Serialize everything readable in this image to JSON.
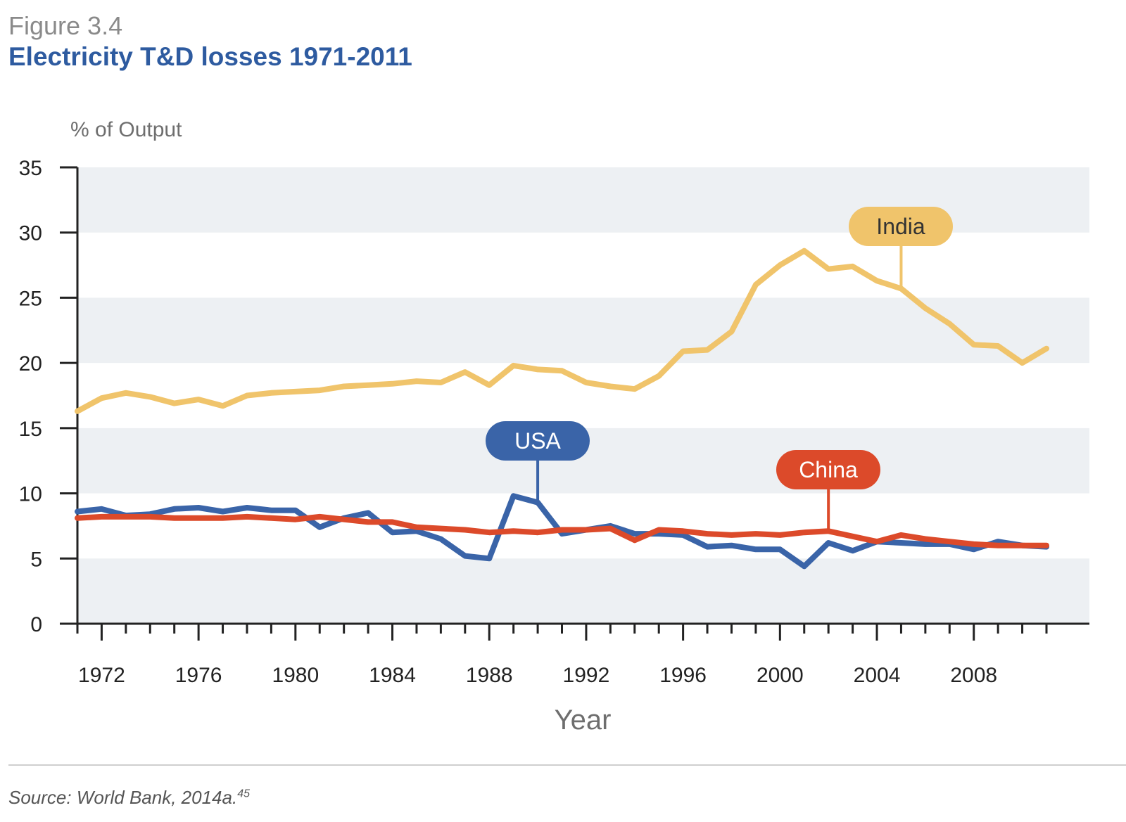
{
  "figure_label": "Figure 3.4",
  "title": "Electricity T&D losses 1971-2011",
  "source": "Source: World Bank, 2014a.",
  "source_footnote": "45",
  "colors": {
    "title": "#2e5ba0",
    "India": "#f0c46b",
    "USA": "#3a64a8",
    "China": "#dc4a2a",
    "band": "#edf0f3"
  },
  "chart_data": {
    "type": "line",
    "ylabel": "% of Output",
    "xlabel": "Year",
    "ylim": [
      0,
      35
    ],
    "xlim": [
      1971,
      2011
    ],
    "y_ticks": [
      "0",
      "5",
      "10",
      "15",
      "20",
      "25",
      "30",
      "35"
    ],
    "x_tick_labels": [
      "1972",
      "1976",
      "1980",
      "1984",
      "1988",
      "1992",
      "1996",
      "2000",
      "2004",
      "2008"
    ],
    "grid": "alternating horizontal bands",
    "x": [
      1971,
      1972,
      1973,
      1974,
      1975,
      1976,
      1977,
      1978,
      1979,
      1980,
      1981,
      1982,
      1983,
      1984,
      1985,
      1986,
      1987,
      1988,
      1989,
      1990,
      1991,
      1992,
      1993,
      1994,
      1995,
      1996,
      1997,
      1998,
      1999,
      2000,
      2001,
      2002,
      2003,
      2004,
      2005,
      2006,
      2007,
      2008,
      2009,
      2010,
      2011
    ],
    "series": [
      {
        "name": "India",
        "values": [
          16.3,
          17.3,
          17.7,
          17.4,
          16.9,
          17.2,
          16.7,
          17.5,
          17.7,
          17.8,
          17.9,
          18.2,
          18.3,
          18.4,
          18.6,
          18.5,
          19.3,
          18.3,
          19.8,
          19.5,
          19.4,
          18.5,
          18.2,
          18.0,
          19.0,
          20.9,
          21.0,
          22.4,
          26.0,
          27.5,
          28.6,
          27.2,
          27.4,
          26.3,
          25.7,
          24.2,
          23.0,
          21.4,
          21.3,
          20.0,
          21.1
        ]
      },
      {
        "name": "USA",
        "values": [
          8.6,
          8.8,
          8.3,
          8.4,
          8.8,
          8.9,
          8.6,
          8.9,
          8.7,
          8.7,
          7.4,
          8.1,
          8.5,
          7.0,
          7.1,
          6.5,
          5.2,
          5.0,
          9.8,
          9.3,
          6.9,
          7.2,
          7.5,
          6.9,
          6.9,
          6.8,
          5.9,
          6.0,
          5.7,
          5.7,
          4.4,
          6.2,
          5.6,
          6.3,
          6.2,
          6.1,
          6.1,
          5.7,
          6.3,
          6.0,
          5.9
        ]
      },
      {
        "name": "China",
        "values": [
          8.1,
          8.2,
          8.2,
          8.2,
          8.1,
          8.1,
          8.1,
          8.2,
          8.1,
          8.0,
          8.2,
          8.0,
          7.8,
          7.8,
          7.4,
          7.3,
          7.2,
          7.0,
          7.1,
          7.0,
          7.2,
          7.2,
          7.3,
          6.4,
          7.2,
          7.1,
          6.9,
          6.8,
          6.9,
          6.8,
          7.0,
          7.1,
          6.7,
          6.3,
          6.8,
          6.5,
          6.3,
          6.1,
          6.0,
          6.0,
          6.0
        ]
      }
    ],
    "annotations": [
      {
        "label": "India",
        "series": "India",
        "anchor_year": 2005
      },
      {
        "label": "USA",
        "series": "USA",
        "anchor_year": 1990
      },
      {
        "label": "China",
        "series": "China",
        "anchor_year": 2002
      }
    ]
  }
}
